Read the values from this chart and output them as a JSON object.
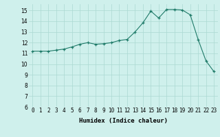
{
  "x": [
    0,
    1,
    2,
    3,
    4,
    5,
    6,
    7,
    8,
    9,
    10,
    11,
    12,
    13,
    14,
    15,
    16,
    17,
    18,
    19,
    20,
    21,
    22,
    23
  ],
  "y": [
    11.2,
    11.2,
    11.2,
    11.3,
    11.4,
    11.6,
    11.85,
    12.0,
    11.85,
    11.9,
    12.0,
    12.2,
    12.3,
    13.0,
    13.85,
    14.95,
    14.3,
    15.1,
    15.1,
    15.05,
    14.6,
    12.3,
    10.3,
    9.3
  ],
  "xlabel": "Humidex (Indice chaleur)",
  "xlim": [
    -0.5,
    23.5
  ],
  "ylim": [
    6,
    15.6
  ],
  "yticks": [
    6,
    7,
    8,
    9,
    10,
    11,
    12,
    13,
    14,
    15
  ],
  "xtick_labels": [
    "0",
    "1",
    "2",
    "3",
    "4",
    "5",
    "6",
    "7",
    "8",
    "9",
    "10",
    "11",
    "12",
    "13",
    "14",
    "15",
    "16",
    "17",
    "18",
    "19",
    "20",
    "21",
    "22",
    "23"
  ],
  "line_color": "#1e7a68",
  "bg_color": "#cff0ec",
  "grid_color": "#aad8d2",
  "label_fontsize": 6.5,
  "tick_fontsize": 5.5
}
